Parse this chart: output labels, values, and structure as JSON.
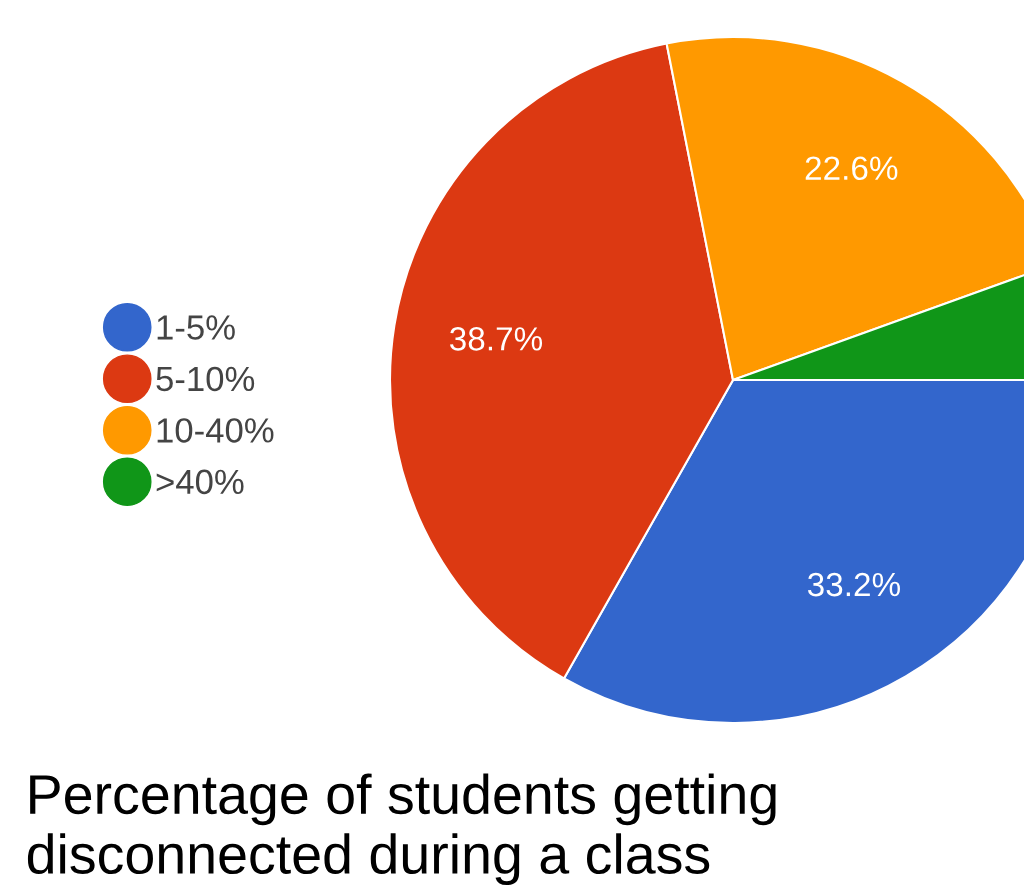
{
  "chart_data": {
    "type": "pie",
    "title": "Percentage of students getting disconnected during a class",
    "categories": [
      "1-5%",
      "5-10%",
      "10-40%",
      ">40%"
    ],
    "values": [
      33.2,
      38.7,
      22.6,
      5.5
    ],
    "colors": [
      "#3366cc",
      "#dc3912",
      "#ff9900",
      "#109618"
    ],
    "value_labels": [
      "33.2%",
      "38.7%",
      "22.6%",
      null
    ],
    "legend": "left"
  }
}
